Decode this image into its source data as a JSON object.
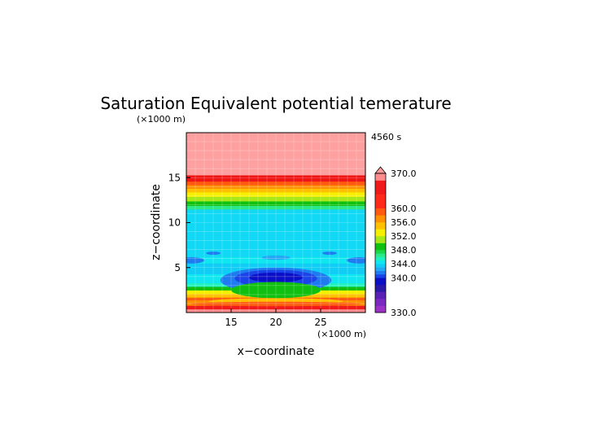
{
  "chart_data": {
    "type": "heatmap",
    "title": "Saturation Equivalent potential temerature",
    "time_label": "4560 s",
    "xlabel": "x−coordinate",
    "ylabel": "z−coordinate",
    "x_units": "(×1000 m)",
    "y_units": "(×1000 m)",
    "xlim": [
      10,
      30
    ],
    "ylim": [
      0,
      20
    ],
    "x_ticks": [
      "15",
      "20",
      "25"
    ],
    "y_ticks": [
      "5",
      "10",
      "15"
    ],
    "x_tick_values": [
      15,
      20,
      25
    ],
    "y_tick_values": [
      5,
      10,
      15
    ],
    "grid": true,
    "colorbar": {
      "min": 330,
      "max": 370,
      "labels": [
        "370.0",
        "360.0",
        "356.0",
        "352.0",
        "348.0",
        "344.0",
        "340.0",
        "330.0"
      ],
      "label_values": [
        370,
        360,
        356,
        352,
        348,
        344,
        340,
        330
      ],
      "bins": [
        {
          "from": 330,
          "to": 332,
          "color": "#9b30c8"
        },
        {
          "from": 332,
          "to": 334,
          "color": "#7a28c0"
        },
        {
          "from": 334,
          "to": 336,
          "color": "#5a1fb4"
        },
        {
          "from": 336,
          "to": 338,
          "color": "#2a18a8"
        },
        {
          "from": 338,
          "to": 340,
          "color": "#0b10c6"
        },
        {
          "from": 340,
          "to": 341,
          "color": "#1a44e8"
        },
        {
          "from": 341,
          "to": 342,
          "color": "#1f7cf0"
        },
        {
          "from": 342,
          "to": 343,
          "color": "#22a8f5"
        },
        {
          "from": 343,
          "to": 344,
          "color": "#10cdf5"
        },
        {
          "from": 344,
          "to": 345,
          "color": "#0fe6f0"
        },
        {
          "from": 345,
          "to": 346,
          "color": "#1ef0c0"
        },
        {
          "from": 346,
          "to": 347,
          "color": "#2de886"
        },
        {
          "from": 347,
          "to": 348,
          "color": "#18d84a"
        },
        {
          "from": 348,
          "to": 350,
          "color": "#10c010"
        },
        {
          "from": 350,
          "to": 352,
          "color": "#a8e818"
        },
        {
          "from": 352,
          "to": 354,
          "color": "#f6f000"
        },
        {
          "from": 354,
          "to": 356,
          "color": "#ffc000"
        },
        {
          "from": 356,
          "to": 358,
          "color": "#ff9000"
        },
        {
          "from": 358,
          "to": 360,
          "color": "#ff5a10"
        },
        {
          "from": 360,
          "to": 364,
          "color": "#ff2a1a"
        },
        {
          "from": 364,
          "to": 368,
          "color": "#f01a1a"
        },
        {
          "from": 368,
          "to": 370,
          "color": "#ff8c8c"
        }
      ],
      "overflow_color": "#ff9a9a"
    },
    "bands": [
      {
        "z0": 0.0,
        "z1": 0.4,
        "color": "#ff8c8c"
      },
      {
        "z0": 0.4,
        "z1": 0.8,
        "color": "#f01a1a"
      },
      {
        "z0": 0.8,
        "z1": 1.4,
        "color": "#ff9000"
      },
      {
        "z0": 1.4,
        "z1": 1.7,
        "color": "#ff5a10"
      },
      {
        "z0": 1.7,
        "z1": 2.1,
        "color": "#ffc000"
      },
      {
        "z0": 2.1,
        "z1": 2.5,
        "color": "#f6f000"
      },
      {
        "z0": 2.5,
        "z1": 2.9,
        "color": "#10c010"
      },
      {
        "z0": 2.9,
        "z1": 3.3,
        "color": "#1ef0c0"
      },
      {
        "z0": 3.3,
        "z1": 4.3,
        "color": "#0fe6f0"
      },
      {
        "z0": 4.3,
        "z1": 5.5,
        "color": "#10cdf5"
      },
      {
        "z0": 5.5,
        "z1": 6.2,
        "color": "#0fe6f0"
      },
      {
        "z0": 6.2,
        "z1": 11.5,
        "color": "#10d8f5"
      },
      {
        "z0": 11.5,
        "z1": 11.9,
        "color": "#2de886"
      },
      {
        "z0": 11.9,
        "z1": 12.4,
        "color": "#10c010"
      },
      {
        "z0": 12.4,
        "z1": 12.9,
        "color": "#a8e818"
      },
      {
        "z0": 12.9,
        "z1": 13.4,
        "color": "#f6f000"
      },
      {
        "z0": 13.4,
        "z1": 13.8,
        "color": "#ffc000"
      },
      {
        "z0": 13.8,
        "z1": 14.2,
        "color": "#ff9000"
      },
      {
        "z0": 14.2,
        "z1": 14.6,
        "color": "#ff5a10"
      },
      {
        "z0": 14.6,
        "z1": 15.3,
        "color": "#ee1515"
      },
      {
        "z0": 15.3,
        "z1": 20.0,
        "color": "#ffa0a0"
      }
    ],
    "features": [
      {
        "kind": "ellipse",
        "cx": 20.0,
        "cz": 3.6,
        "rx": 6.2,
        "rz": 1.4,
        "color": "#1f7cf0"
      },
      {
        "kind": "ellipse",
        "cx": 20.0,
        "cz": 3.8,
        "rx": 4.6,
        "rz": 0.95,
        "color": "#1a44e8"
      },
      {
        "kind": "ellipse",
        "cx": 20.0,
        "cz": 3.9,
        "rx": 3.0,
        "rz": 0.55,
        "color": "#0b10c6"
      },
      {
        "kind": "ellipse",
        "cx": 20.0,
        "cz": 2.5,
        "rx": 5.0,
        "rz": 0.9,
        "color": "#10c010"
      },
      {
        "kind": "ellipse",
        "cx": 10.6,
        "cz": 5.8,
        "rx": 1.4,
        "rz": 0.35,
        "color": "#1f7cf0"
      },
      {
        "kind": "ellipse",
        "cx": 29.3,
        "cz": 5.8,
        "rx": 1.4,
        "rz": 0.35,
        "color": "#1f7cf0"
      },
      {
        "kind": "ellipse",
        "cx": 13.0,
        "cz": 6.6,
        "rx": 0.8,
        "rz": 0.18,
        "color": "#1f7cf0"
      },
      {
        "kind": "ellipse",
        "cx": 26.0,
        "cz": 6.6,
        "rx": 0.8,
        "rz": 0.18,
        "color": "#1f7cf0"
      },
      {
        "kind": "ellipse",
        "cx": 20.0,
        "cz": 6.1,
        "rx": 1.6,
        "rz": 0.25,
        "color": "#22a8f5"
      },
      {
        "kind": "ellipse",
        "cx": 20.0,
        "cz": 1.25,
        "rx": 7.5,
        "rz": 0.35,
        "color": "#ffc000"
      },
      {
        "kind": "ellipse",
        "cx": 20.0,
        "cz": 0.95,
        "rx": 9.5,
        "rz": 0.25,
        "color": "#ff5a10"
      }
    ]
  }
}
